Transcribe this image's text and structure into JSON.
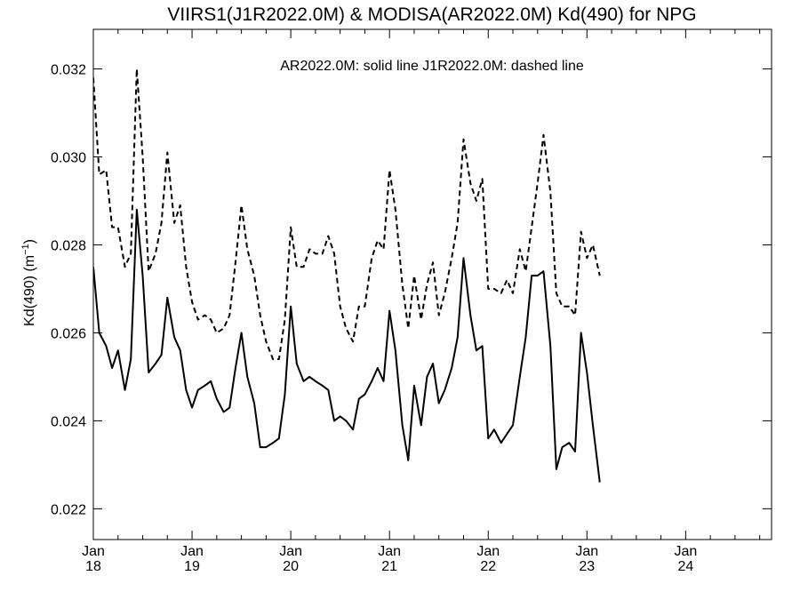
{
  "chart_data": {
    "type": "line",
    "title": "VIIRS1(J1R2022.0M) & MODISA(AR2022.0M)  Kd(490) for NPG",
    "annotation": "AR2022.0M: solid line   J1R2022.0M: dashed line",
    "ylabel": "Kd(490) (m",
    "ylabel_superscript": "−1",
    "ylabel_close": ")",
    "xlabel": "",
    "xlim": [
      2018.0,
      2024.87
    ],
    "ylim": [
      0.0213,
      0.0329
    ],
    "grid": false,
    "y_ticks": [
      {
        "value": 0.022,
        "label": "0.022"
      },
      {
        "value": 0.024,
        "label": "0.024"
      },
      {
        "value": 0.026,
        "label": "0.026"
      },
      {
        "value": 0.028,
        "label": "0.028"
      },
      {
        "value": 0.03,
        "label": "0.030"
      },
      {
        "value": 0.032,
        "label": "0.032"
      }
    ],
    "x_ticks": [
      {
        "value": 2018.0,
        "month": "Jan",
        "year": "18"
      },
      {
        "value": 2019.0,
        "month": "Jan",
        "year": "19"
      },
      {
        "value": 2020.0,
        "month": "Jan",
        "year": "20"
      },
      {
        "value": 2021.0,
        "month": "Jan",
        "year": "21"
      },
      {
        "value": 2022.0,
        "month": "Jan",
        "year": "22"
      },
      {
        "value": 2023.0,
        "month": "Jan",
        "year": "23"
      },
      {
        "value": 2024.0,
        "month": "Jan",
        "year": "24"
      }
    ],
    "series": [
      {
        "name": "AR2022.0M",
        "style": "solid",
        "color": "#000000",
        "points": [
          [
            2018.0,
            0.0275
          ],
          [
            2018.06,
            0.026
          ],
          [
            2018.13,
            0.0257
          ],
          [
            2018.19,
            0.0252
          ],
          [
            2018.25,
            0.0256
          ],
          [
            2018.32,
            0.0247
          ],
          [
            2018.38,
            0.0254
          ],
          [
            2018.44,
            0.0288
          ],
          [
            2018.5,
            0.0273
          ],
          [
            2018.56,
            0.0251
          ],
          [
            2018.63,
            0.0253
          ],
          [
            2018.69,
            0.0255
          ],
          [
            2018.75,
            0.0268
          ],
          [
            2018.82,
            0.0259
          ],
          [
            2018.88,
            0.0256
          ],
          [
            2018.94,
            0.0247
          ],
          [
            2019.0,
            0.0243
          ],
          [
            2019.06,
            0.0247
          ],
          [
            2019.13,
            0.0248
          ],
          [
            2019.19,
            0.0249
          ],
          [
            2019.25,
            0.0245
          ],
          [
            2019.32,
            0.0242
          ],
          [
            2019.38,
            0.0243
          ],
          [
            2019.44,
            0.0252
          ],
          [
            2019.5,
            0.026
          ],
          [
            2019.56,
            0.025
          ],
          [
            2019.63,
            0.0244
          ],
          [
            2019.69,
            0.0234
          ],
          [
            2019.75,
            0.0234
          ],
          [
            2019.82,
            0.0235
          ],
          [
            2019.88,
            0.0236
          ],
          [
            2019.94,
            0.0246
          ],
          [
            2020.0,
            0.0266
          ],
          [
            2020.06,
            0.0253
          ],
          [
            2020.13,
            0.0249
          ],
          [
            2020.19,
            0.025
          ],
          [
            2020.25,
            0.0249
          ],
          [
            2020.32,
            0.0248
          ],
          [
            2020.38,
            0.0247
          ],
          [
            2020.44,
            0.024
          ],
          [
            2020.5,
            0.0241
          ],
          [
            2020.56,
            0.024
          ],
          [
            2020.63,
            0.0238
          ],
          [
            2020.69,
            0.0245
          ],
          [
            2020.75,
            0.0246
          ],
          [
            2020.82,
            0.0249
          ],
          [
            2020.88,
            0.0252
          ],
          [
            2020.94,
            0.0249
          ],
          [
            2021.0,
            0.0265
          ],
          [
            2021.06,
            0.0256
          ],
          [
            2021.13,
            0.0239
          ],
          [
            2021.19,
            0.0231
          ],
          [
            2021.25,
            0.0248
          ],
          [
            2021.32,
            0.0239
          ],
          [
            2021.38,
            0.025
          ],
          [
            2021.44,
            0.0253
          ],
          [
            2021.5,
            0.0244
          ],
          [
            2021.56,
            0.0247
          ],
          [
            2021.63,
            0.0252
          ],
          [
            2021.69,
            0.0259
          ],
          [
            2021.75,
            0.0277
          ],
          [
            2021.82,
            0.0264
          ],
          [
            2021.88,
            0.0256
          ],
          [
            2021.94,
            0.0257
          ],
          [
            2022.0,
            0.0236
          ],
          [
            2022.06,
            0.0238
          ],
          [
            2022.13,
            0.0235
          ],
          [
            2022.19,
            0.0237
          ],
          [
            2022.25,
            0.0239
          ],
          [
            2022.32,
            0.025
          ],
          [
            2022.38,
            0.0259
          ],
          [
            2022.44,
            0.0273
          ],
          [
            2022.5,
            0.0273
          ],
          [
            2022.56,
            0.0274
          ],
          [
            2022.63,
            0.0257
          ],
          [
            2022.69,
            0.0229
          ],
          [
            2022.75,
            0.0234
          ],
          [
            2022.82,
            0.0235
          ],
          [
            2022.88,
            0.0233
          ],
          [
            2022.94,
            0.026
          ],
          [
            2023.0,
            0.0251
          ],
          [
            2023.06,
            0.0239
          ],
          [
            2023.13,
            0.0226
          ]
        ]
      },
      {
        "name": "J1R2022.0M",
        "style": "dashed",
        "color": "#000000",
        "points": [
          [
            2018.0,
            0.0318
          ],
          [
            2018.06,
            0.0296
          ],
          [
            2018.13,
            0.0297
          ],
          [
            2018.19,
            0.0284
          ],
          [
            2018.25,
            0.0284
          ],
          [
            2018.32,
            0.0275
          ],
          [
            2018.38,
            0.0278
          ],
          [
            2018.44,
            0.032
          ],
          [
            2018.5,
            0.03
          ],
          [
            2018.56,
            0.0274
          ],
          [
            2018.63,
            0.0278
          ],
          [
            2018.69,
            0.0285
          ],
          [
            2018.75,
            0.0301
          ],
          [
            2018.82,
            0.0285
          ],
          [
            2018.88,
            0.0289
          ],
          [
            2018.94,
            0.0275
          ],
          [
            2019.0,
            0.0267
          ],
          [
            2019.06,
            0.0263
          ],
          [
            2019.13,
            0.0264
          ],
          [
            2019.19,
            0.0263
          ],
          [
            2019.25,
            0.026
          ],
          [
            2019.32,
            0.0261
          ],
          [
            2019.38,
            0.0264
          ],
          [
            2019.44,
            0.0276
          ],
          [
            2019.5,
            0.0289
          ],
          [
            2019.56,
            0.0279
          ],
          [
            2019.63,
            0.0273
          ],
          [
            2019.69,
            0.0264
          ],
          [
            2019.75,
            0.0258
          ],
          [
            2019.82,
            0.0254
          ],
          [
            2019.88,
            0.0254
          ],
          [
            2019.94,
            0.0263
          ],
          [
            2020.0,
            0.0284
          ],
          [
            2020.06,
            0.0275
          ],
          [
            2020.13,
            0.0275
          ],
          [
            2020.19,
            0.0279
          ],
          [
            2020.25,
            0.0278
          ],
          [
            2020.32,
            0.0278
          ],
          [
            2020.38,
            0.0282
          ],
          [
            2020.44,
            0.0278
          ],
          [
            2020.5,
            0.0266
          ],
          [
            2020.56,
            0.0261
          ],
          [
            2020.63,
            0.0258
          ],
          [
            2020.69,
            0.0266
          ],
          [
            2020.75,
            0.0266
          ],
          [
            2020.82,
            0.0277
          ],
          [
            2020.88,
            0.0281
          ],
          [
            2020.94,
            0.0279
          ],
          [
            2021.0,
            0.0297
          ],
          [
            2021.06,
            0.0288
          ],
          [
            2021.13,
            0.0271
          ],
          [
            2021.19,
            0.0261
          ],
          [
            2021.25,
            0.0273
          ],
          [
            2021.32,
            0.0263
          ],
          [
            2021.38,
            0.0271
          ],
          [
            2021.44,
            0.0276
          ],
          [
            2021.5,
            0.0264
          ],
          [
            2021.56,
            0.0269
          ],
          [
            2021.63,
            0.0277
          ],
          [
            2021.69,
            0.0285
          ],
          [
            2021.75,
            0.0304
          ],
          [
            2021.82,
            0.0294
          ],
          [
            2021.88,
            0.029
          ],
          [
            2021.94,
            0.0295
          ],
          [
            2022.0,
            0.027
          ],
          [
            2022.06,
            0.027
          ],
          [
            2022.13,
            0.0269
          ],
          [
            2022.19,
            0.0272
          ],
          [
            2022.25,
            0.0269
          ],
          [
            2022.32,
            0.0279
          ],
          [
            2022.38,
            0.0274
          ],
          [
            2022.44,
            0.0284
          ],
          [
            2022.5,
            0.0294
          ],
          [
            2022.56,
            0.0305
          ],
          [
            2022.63,
            0.0292
          ],
          [
            2022.69,
            0.0269
          ],
          [
            2022.75,
            0.0266
          ],
          [
            2022.82,
            0.0266
          ],
          [
            2022.88,
            0.0264
          ],
          [
            2022.94,
            0.0283
          ],
          [
            2023.0,
            0.0277
          ],
          [
            2023.06,
            0.028
          ],
          [
            2023.13,
            0.0273
          ]
        ]
      }
    ]
  }
}
